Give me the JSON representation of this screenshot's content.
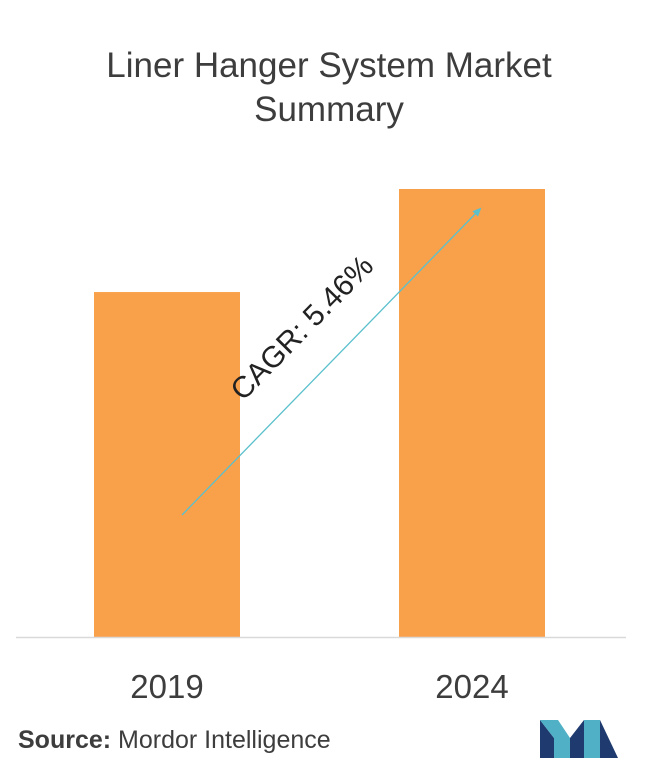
{
  "chart_data": {
    "type": "bar",
    "title": "Liner Hanger System Market Summary",
    "categories": [
      "2019",
      "2024"
    ],
    "values": [
      0.77,
      1.0
    ],
    "ylim": [
      0,
      1.0
    ],
    "bar_color": "#f9a04a",
    "annotation": {
      "text": "CAGR: 5.46%",
      "arrow_color": "#5bc0cc"
    },
    "grid": false,
    "legend": "none"
  },
  "source": {
    "label": "Source:",
    "text": "Mordor Intelligence"
  },
  "logo": {
    "icon": "mordor-intelligence-logo",
    "colors": [
      "#1f3a6e",
      "#4fb0c6"
    ]
  }
}
